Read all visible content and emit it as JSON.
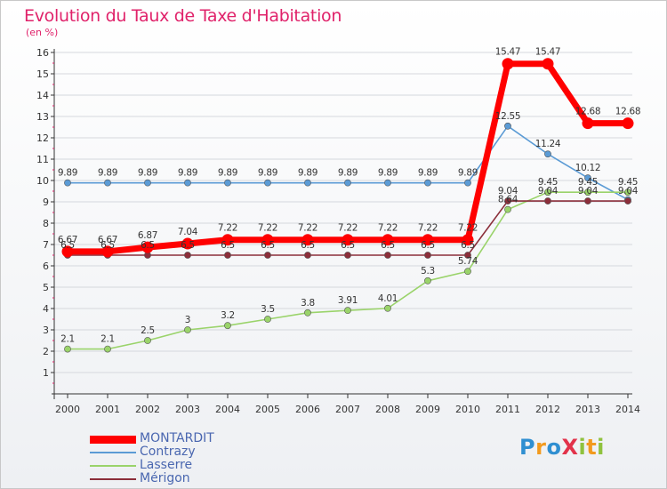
{
  "title": "Evolution du Taux de Taxe d'Habitation",
  "unit_label": "(en %)",
  "colors": {
    "title": "#e0226a",
    "axis": "#333333",
    "legend_text": "#4a67b0"
  },
  "logo": {
    "text": "Proxiti",
    "letters": [
      {
        "ch": "P",
        "color": "#2f8fd1"
      },
      {
        "ch": "r",
        "color": "#f29a1e"
      },
      {
        "ch": "o",
        "color": "#2f8fd1"
      },
      {
        "ch": "X",
        "color": "#e2324a"
      },
      {
        "ch": "i",
        "color": "#8fc23e"
      },
      {
        "ch": "t",
        "color": "#f29a1e"
      },
      {
        "ch": "i",
        "color": "#8fc23e"
      }
    ]
  },
  "chart_data": {
    "type": "line",
    "title": "Evolution du Taux de Taxe d'Habitation",
    "ylabel": "(en %)",
    "xlabel": "",
    "x": [
      "2000",
      "2001",
      "2002",
      "2003",
      "2004",
      "2005",
      "2006",
      "2007",
      "2008",
      "2009",
      "2010",
      "2011",
      "2012",
      "2013",
      "2014"
    ],
    "ylim": [
      0,
      16
    ],
    "yticks": [
      1,
      2,
      3,
      4,
      5,
      6,
      7,
      8,
      9,
      10,
      11,
      12,
      13,
      14,
      15,
      16
    ],
    "grid": "horizontal",
    "legend_position": "bottom-left",
    "series": [
      {
        "name": "MONTARDIT",
        "color": "#ff0000",
        "emphasis": true,
        "values": [
          6.67,
          6.67,
          6.87,
          7.04,
          7.22,
          7.22,
          7.22,
          7.22,
          7.22,
          7.22,
          7.22,
          15.47,
          15.47,
          12.68,
          12.68
        ],
        "labels": [
          "6.67",
          "6.67",
          "6.87",
          "7.04",
          "7.22",
          "7.22",
          "7.22",
          "7.22",
          "7.22",
          "7.22",
          "7.22",
          "15.47",
          "15.47",
          "12.68",
          "12.68"
        ]
      },
      {
        "name": "Contrazy",
        "color": "#5b9bd5",
        "emphasis": false,
        "values": [
          9.89,
          9.89,
          9.89,
          9.89,
          9.89,
          9.89,
          9.89,
          9.89,
          9.89,
          9.89,
          9.89,
          12.55,
          11.24,
          10.12,
          9.1
        ],
        "labels": [
          "9.89",
          "9.89",
          "9.89",
          "9.89",
          "9.89",
          "9.89",
          "9.89",
          "9.89",
          "9.89",
          "9.89",
          "9.89",
          "12.55",
          "11.24",
          "10.12",
          ""
        ]
      },
      {
        "name": "Lasserre",
        "color": "#9ad36a",
        "emphasis": false,
        "values": [
          2.1,
          2.1,
          2.5,
          3,
          3.2,
          3.5,
          3.8,
          3.91,
          4.01,
          5.3,
          5.74,
          8.64,
          9.45,
          9.45,
          9.45
        ],
        "labels": [
          "2.1",
          "2.1",
          "2.5",
          "3",
          "3.2",
          "3.5",
          "3.8",
          "3.91",
          "4.01",
          "5.3",
          "5.74",
          "8.64",
          "9.45",
          "9.45",
          "9.45"
        ]
      },
      {
        "name": "Mérigon",
        "color": "#8b2e3a",
        "emphasis": false,
        "values": [
          6.5,
          6.5,
          6.5,
          6.5,
          6.5,
          6.5,
          6.5,
          6.5,
          6.5,
          6.5,
          6.5,
          9.04,
          9.04,
          9.04,
          9.04
        ],
        "labels": [
          "6.5",
          "6.5",
          "6.5",
          "6.5",
          "6.5",
          "6.5",
          "6.5",
          "6.5",
          "6.5",
          "6.5",
          "6.5",
          "9.04",
          "9.04",
          "9.04",
          "9.04"
        ]
      }
    ]
  }
}
